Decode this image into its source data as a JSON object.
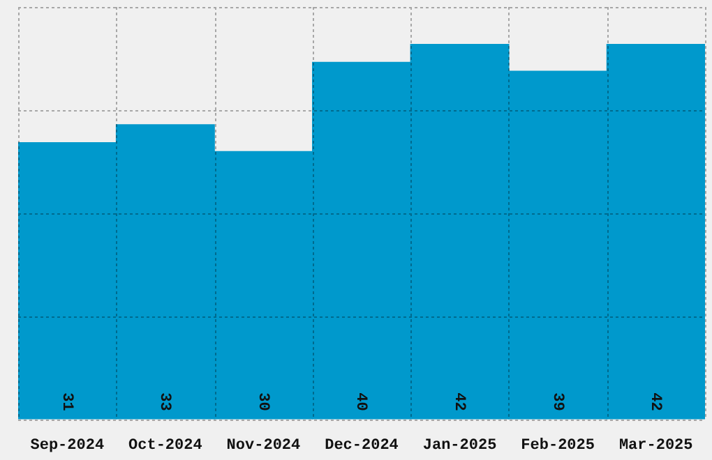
{
  "chart_data": {
    "type": "bar",
    "categories": [
      "Sep-2024",
      "Oct-2024",
      "Nov-2024",
      "Dec-2024",
      "Jan-2025",
      "Feb-2025",
      "Mar-2025"
    ],
    "values": [
      31,
      33,
      30,
      40,
      42,
      39,
      42
    ],
    "color": "#0099cc",
    "ylim": [
      0,
      46.2
    ],
    "grid": true,
    "data_labels": true,
    "tick_labels": "x"
  }
}
